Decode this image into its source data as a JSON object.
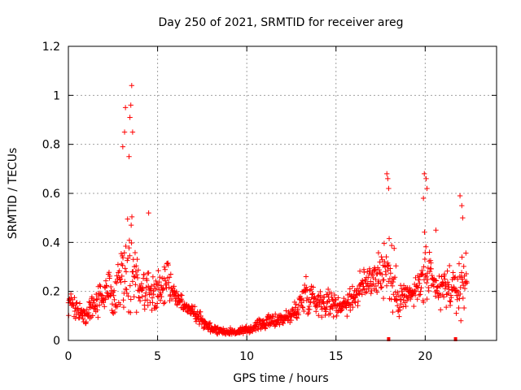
{
  "chart_data": {
    "type": "scatter",
    "title": "Day 250 of 2021, SRMTID for receiver areg",
    "xlabel": "GPS time / hours",
    "ylabel": "SRMTID / TECUs",
    "xlim": [
      0,
      24
    ],
    "ylim": [
      0,
      1.2
    ],
    "xticks": [
      0,
      5,
      10,
      15,
      20
    ],
    "yticks": [
      0,
      0.2,
      0.4,
      0.6,
      0.8,
      1,
      1.2
    ],
    "xtick_labels": [
      "0",
      "5",
      "10",
      "15",
      "20"
    ],
    "ytick_labels": [
      "0",
      "0.2",
      "0.4",
      "0.6",
      "0.8",
      "1",
      "1.2"
    ],
    "grid": true,
    "legend": "none",
    "marker": "+",
    "color": "#ff0000",
    "envelope": {
      "description": "approximate typical value and spread of the point cloud over GPS time (hours)",
      "x": [
        0.0,
        0.5,
        1.0,
        1.5,
        2.0,
        2.5,
        3.0,
        3.3,
        3.6,
        4.0,
        4.5,
        5.0,
        5.5,
        6.0,
        6.5,
        7.0,
        7.5,
        8.0,
        8.5,
        9.0,
        9.5,
        10.0,
        10.5,
        11.0,
        11.5,
        12.0,
        12.5,
        13.0,
        13.3,
        13.6,
        14.0,
        14.5,
        15.0,
        15.5,
        16.0,
        16.5,
        17.0,
        17.5,
        17.9,
        18.3,
        18.7,
        19.0,
        19.5,
        20.0,
        20.4,
        20.8,
        21.2,
        21.6,
        22.0,
        22.3
      ],
      "center": [
        0.16,
        0.12,
        0.1,
        0.16,
        0.18,
        0.2,
        0.28,
        0.32,
        0.3,
        0.22,
        0.2,
        0.2,
        0.26,
        0.18,
        0.14,
        0.12,
        0.08,
        0.05,
        0.04,
        0.035,
        0.035,
        0.04,
        0.06,
        0.07,
        0.08,
        0.09,
        0.1,
        0.15,
        0.2,
        0.18,
        0.16,
        0.16,
        0.14,
        0.15,
        0.18,
        0.22,
        0.26,
        0.28,
        0.3,
        0.2,
        0.18,
        0.18,
        0.2,
        0.28,
        0.22,
        0.2,
        0.22,
        0.2,
        0.22,
        0.26
      ],
      "spread": [
        0.12,
        0.07,
        0.06,
        0.08,
        0.1,
        0.12,
        0.22,
        0.32,
        0.34,
        0.14,
        0.12,
        0.1,
        0.14,
        0.06,
        0.05,
        0.05,
        0.04,
        0.03,
        0.02,
        0.02,
        0.02,
        0.025,
        0.03,
        0.035,
        0.04,
        0.04,
        0.05,
        0.08,
        0.12,
        0.1,
        0.08,
        0.08,
        0.06,
        0.07,
        0.08,
        0.1,
        0.12,
        0.16,
        0.2,
        0.18,
        0.1,
        0.08,
        0.08,
        0.2,
        0.14,
        0.12,
        0.12,
        0.1,
        0.18,
        0.12
      ],
      "x_start": 0.0,
      "x_end": 22.35,
      "sample_step": 0.02
    },
    "peaks": [
      {
        "x": 3.05,
        "y": 0.79
      },
      {
        "x": 3.15,
        "y": 0.85
      },
      {
        "x": 3.2,
        "y": 0.95
      },
      {
        "x": 3.45,
        "y": 0.91
      },
      {
        "x": 3.5,
        "y": 0.96
      },
      {
        "x": 3.55,
        "y": 1.04
      },
      {
        "x": 3.6,
        "y": 0.85
      },
      {
        "x": 3.4,
        "y": 0.75
      },
      {
        "x": 4.5,
        "y": 0.52
      },
      {
        "x": 17.85,
        "y": 0.68
      },
      {
        "x": 17.9,
        "y": 0.66
      },
      {
        "x": 17.95,
        "y": 0.62
      },
      {
        "x": 19.95,
        "y": 0.68
      },
      {
        "x": 20.05,
        "y": 0.66
      },
      {
        "x": 20.1,
        "y": 0.62
      },
      {
        "x": 19.9,
        "y": 0.58
      },
      {
        "x": 21.95,
        "y": 0.59
      },
      {
        "x": 22.05,
        "y": 0.55
      },
      {
        "x": 22.1,
        "y": 0.5
      },
      {
        "x": 20.6,
        "y": 0.45
      }
    ],
    "axis_marks": [
      {
        "x": 17.95,
        "y": 0.0
      },
      {
        "x": 21.7,
        "y": 0.0
      }
    ]
  }
}
